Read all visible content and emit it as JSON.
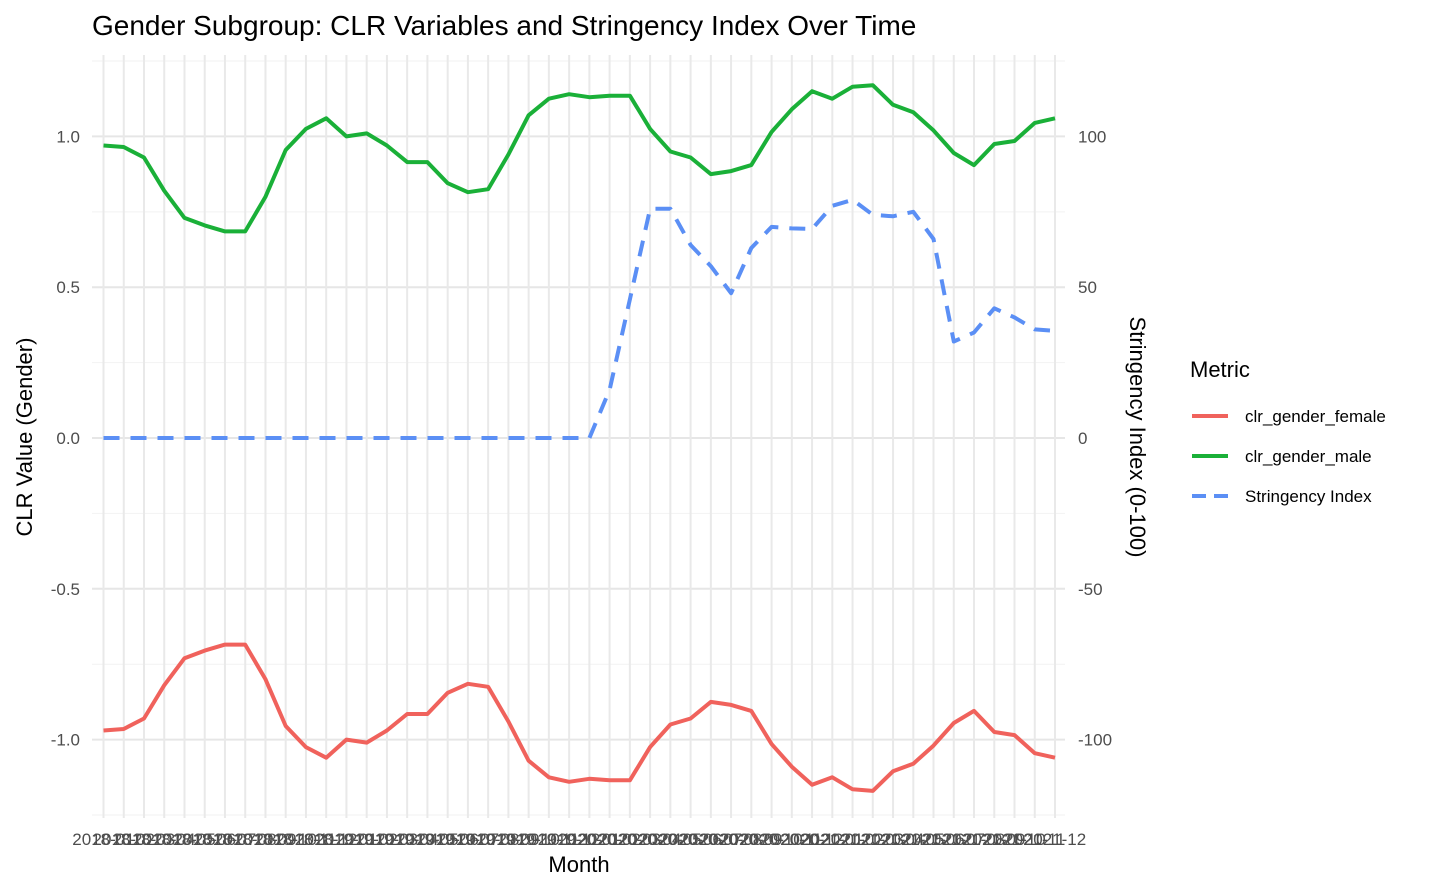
{
  "chart_data": {
    "type": "line",
    "title": "Gender Subgroup: CLR Variables and Stringency Index Over Time",
    "xlabel": "Month",
    "ylabel": "CLR Value (Gender)",
    "y2label": "Stringency Index (0-100)",
    "ylim": [
      -1.26,
      1.27
    ],
    "y2lim": [
      -126,
      127
    ],
    "y_ticks": [
      -1.0,
      -0.5,
      0.0,
      0.5,
      1.0
    ],
    "y_tick_labels": [
      "-1.0",
      "-0.5",
      "0.0",
      "0.5",
      "1.0"
    ],
    "y2_ticks": [
      -100,
      -50,
      0,
      50,
      100
    ],
    "y2_tick_labels": [
      "-100",
      "-50",
      "0",
      "50",
      "100"
    ],
    "x_tick_labels": [
      "2018-01",
      "2018-02",
      "2018-03",
      "2018-04",
      "2018-05",
      "2018-06",
      "2018-07",
      "2018-08",
      "2018-09",
      "2018-10",
      "2018-11",
      "2018-12",
      "2019-01",
      "2019-02",
      "2019-03",
      "2019-04",
      "2019-05",
      "2019-06",
      "2019-07",
      "2019-08",
      "2019-09",
      "2019-10",
      "2019-11",
      "2019-12",
      "2020-01",
      "2020-02",
      "2020-03",
      "2020-04",
      "2020-05",
      "2020-06",
      "2020-07",
      "2020-08",
      "2020-09",
      "2020-10",
      "2020-11",
      "2020-12",
      "2021-01",
      "2021-02",
      "2021-03",
      "2021-04",
      "2021-05",
      "2021-06",
      "2021-07",
      "2021-08",
      "2021-09",
      "2021-10",
      "2021-11",
      "2021-12"
    ],
    "grid": true,
    "legend": {
      "title": "Metric",
      "placement": "right"
    },
    "series": [
      {
        "name": "clr_gender_female",
        "axis": "left",
        "color": "#f0625c",
        "dash": "solid",
        "values": [
          -0.97,
          -0.965,
          -0.93,
          -0.82,
          -0.73,
          -0.705,
          -0.685,
          -0.685,
          -0.8,
          -0.955,
          -1.025,
          -1.06,
          -1.0,
          -1.01,
          -0.97,
          -0.915,
          -0.915,
          -0.845,
          -0.815,
          -0.825,
          -0.94,
          -1.07,
          -1.125,
          -1.14,
          -1.13,
          -1.135,
          -1.135,
          -1.025,
          -0.95,
          -0.93,
          -0.875,
          -0.885,
          -0.905,
          -1.015,
          -1.09,
          -1.15,
          -1.125,
          -1.165,
          -1.17,
          -1.105,
          -1.08,
          -1.02,
          -0.945,
          -0.905,
          -0.975,
          -0.985,
          -1.045,
          -1.06
        ]
      },
      {
        "name": "clr_gender_male",
        "axis": "left",
        "color": "#1ab038",
        "dash": "solid",
        "values": [
          0.97,
          0.965,
          0.93,
          0.82,
          0.73,
          0.705,
          0.685,
          0.685,
          0.8,
          0.955,
          1.025,
          1.06,
          1.0,
          1.01,
          0.97,
          0.915,
          0.915,
          0.845,
          0.815,
          0.825,
          0.94,
          1.07,
          1.125,
          1.14,
          1.13,
          1.135,
          1.135,
          1.025,
          0.95,
          0.93,
          0.875,
          0.885,
          0.905,
          1.015,
          1.09,
          1.15,
          1.125,
          1.165,
          1.17,
          1.105,
          1.08,
          1.02,
          0.945,
          0.905,
          0.975,
          0.985,
          1.045,
          1.06
        ]
      },
      {
        "name": "Stringency Index",
        "axis": "right",
        "color": "#5b8ff5",
        "dash": "dashed",
        "values": [
          0,
          0,
          0,
          0,
          0,
          0,
          0,
          0,
          0,
          0,
          0,
          0,
          0,
          0,
          0,
          0,
          0,
          0,
          0,
          0,
          0,
          0,
          0,
          0,
          0,
          16,
          46,
          76,
          76,
          64,
          57,
          48,
          63,
          70,
          69.5,
          69.3,
          77,
          79,
          74,
          73.5,
          75,
          66,
          32,
          35,
          43,
          40,
          36,
          35.5
        ]
      }
    ]
  }
}
